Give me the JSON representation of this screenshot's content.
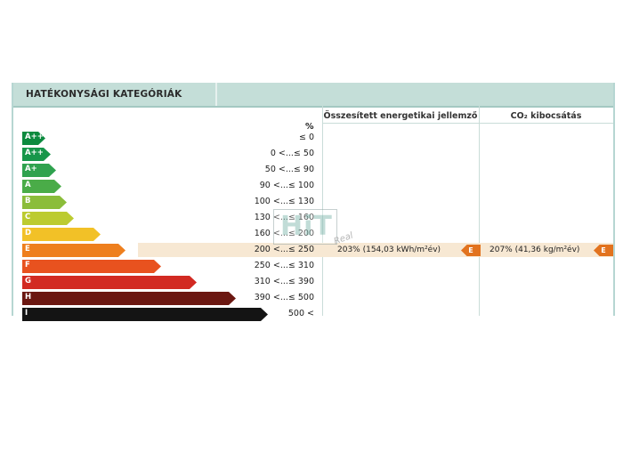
{
  "header": {
    "title": "HATÉKONYSÁGI KATEGÓRIÁK"
  },
  "columns": {
    "energy": "Összesített energetikai jellemző",
    "co2": "CO₂ kibocsátás",
    "percent": "%"
  },
  "categories": [
    {
      "label": "A+++",
      "range": "≤ 0",
      "color": "#0c8a3e"
    },
    {
      "label": "A++",
      "range": "0 <...≤ 50",
      "color": "#17964a"
    },
    {
      "label": "A+",
      "range": "50 <...≤ 90",
      "color": "#2fa24e"
    },
    {
      "label": "A",
      "range": "90 <...≤ 100",
      "color": "#4aac48"
    },
    {
      "label": "B",
      "range": "100 <...≤ 130",
      "color": "#8bbd3a"
    },
    {
      "label": "C",
      "range": "130 <...≤ 160",
      "color": "#bccb30"
    },
    {
      "label": "D",
      "range": "160 <...≤ 200",
      "color": "#f2c127"
    },
    {
      "label": "E",
      "range": "200 <...≤ 250",
      "color": "#ee7f1d"
    },
    {
      "label": "F",
      "range": "250 <...≤ 310",
      "color": "#e8521f"
    },
    {
      "label": "G",
      "range": "310 <...≤ 390",
      "color": "#d22a22"
    },
    {
      "label": "H",
      "range": "390 <...≤ 500",
      "color": "#6b1711"
    },
    {
      "label": "I",
      "range": "500 <",
      "color": "#141414"
    }
  ],
  "result": {
    "energy_value": "203% (154,03 kWh/m²év)",
    "energy_class": "E",
    "co2_value": "207% (41,36 kg/m²év)",
    "co2_class": "E",
    "highlight_color": "#f7e8d3",
    "tag_color": "#e2731f"
  },
  "watermark": {
    "text": "HiT",
    "sub": "Real"
  }
}
